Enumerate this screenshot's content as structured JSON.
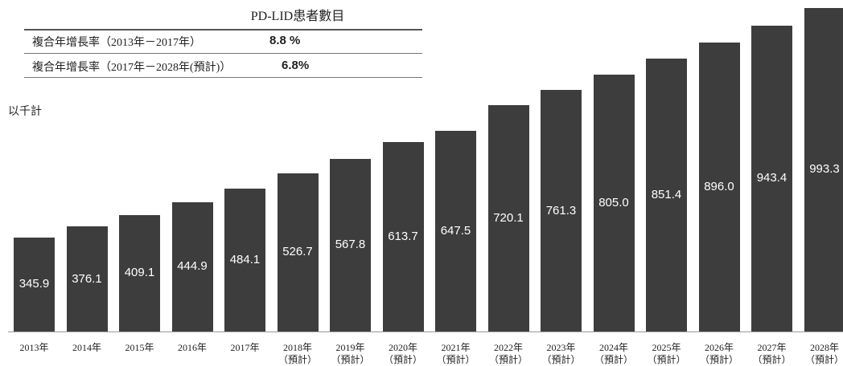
{
  "chart_data": {
    "type": "bar",
    "title": "PD-LID患者數目",
    "table": [
      {
        "label": "複合年增長率（2013年－2017年）",
        "value": "8.8 %"
      },
      {
        "label": "複合年增長率（2017年－2028年(預計)）",
        "value": "6.8%"
      }
    ],
    "unit_label": "以千計",
    "categories": [
      "2013年",
      "2014年",
      "2015年",
      "2016年",
      "2017年",
      "2018年\n（預計）",
      "2019年\n（預計）",
      "2020年\n（預計）",
      "2021年\n（預計）",
      "2022年\n（預計）",
      "2023年\n（預計）",
      "2024年\n（預計）",
      "2025年\n（預計）",
      "2026年\n（預計）",
      "2027年\n（預計）",
      "2028年\n（預計）"
    ],
    "values": [
      345.9,
      376.1,
      409.1,
      444.9,
      484.1,
      526.7,
      567.8,
      613.7,
      647.5,
      720.1,
      761.3,
      805.0,
      851.4,
      896.0,
      943.4,
      993.3
    ],
    "value_labels": [
      "345.9",
      "376.1",
      "409.1",
      "444.9",
      "484.1",
      "526.7",
      "567.8",
      "613.7",
      "647.5",
      "720.1",
      "761.3",
      "805.0",
      "851.4",
      "896.0",
      "943.4",
      "993.3"
    ],
    "ylim": [
      80,
      1000
    ],
    "color": "#3d3d3d"
  }
}
